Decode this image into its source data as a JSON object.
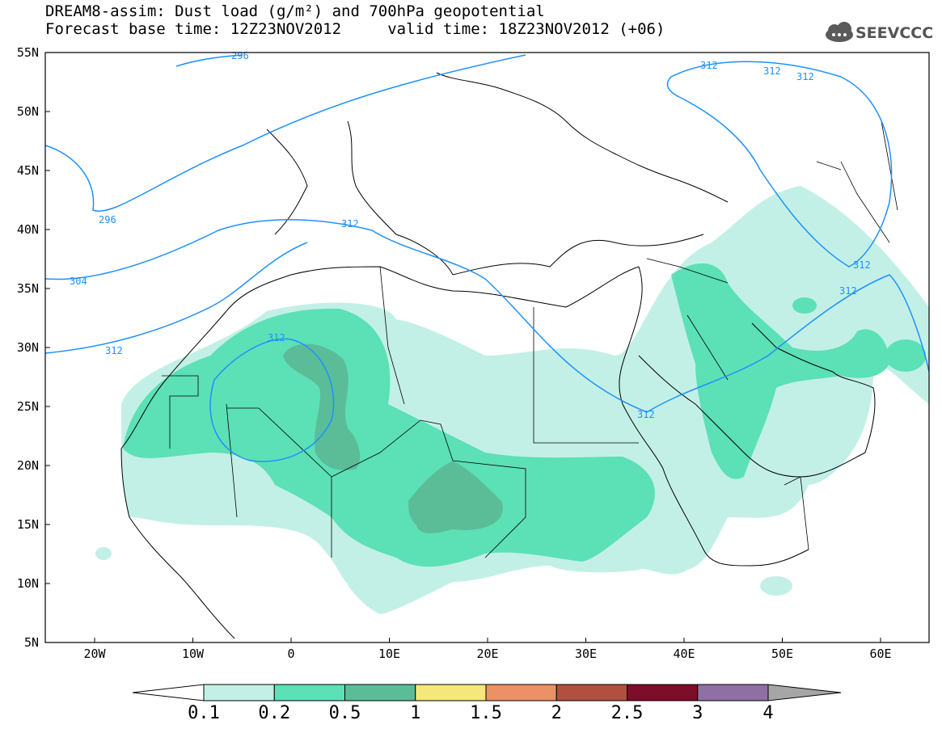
{
  "title_line1": "DREAM8-assim: Dust load (g/m²) and 700hPa geopotential",
  "title_line2": "Forecast base time: 12Z23NOV2012     valid time: 18Z23NOV2012 (+06)",
  "logo_text": "SEEVCCC",
  "logo_icon": "cloud-icon",
  "lat_labels": [
    "55N",
    "50N",
    "45N",
    "40N",
    "35N",
    "30N",
    "25N",
    "20N",
    "15N",
    "10N",
    "5N"
  ],
  "lon_labels": [
    "20W",
    "10W",
    "0",
    "10E",
    "20E",
    "30E",
    "40E",
    "50E",
    "60E"
  ],
  "contour_labels": [
    "296",
    "296",
    "304",
    "312",
    "312",
    "312",
    "312",
    "312",
    "312",
    "312",
    "312",
    "312"
  ],
  "colorbar": {
    "ticks": [
      "0.1",
      "0.2",
      "0.5",
      "1",
      "1.5",
      "2",
      "2.5",
      "3",
      "4"
    ],
    "colors": [
      "#c3f0e6",
      "#5ce0b6",
      "#5bbd98",
      "#f5e77a",
      "#ec9066",
      "#b0513f",
      "#7d0d28",
      "#8f6fa4"
    ],
    "under_color": "#ffffff",
    "over_color": "#a6a6a6"
  },
  "colors": {
    "dust_low": "#c3f0e6",
    "dust_mid": "#5ce0b6",
    "dust_high": "#5bbd98",
    "contour": "#1e90ff"
  }
}
